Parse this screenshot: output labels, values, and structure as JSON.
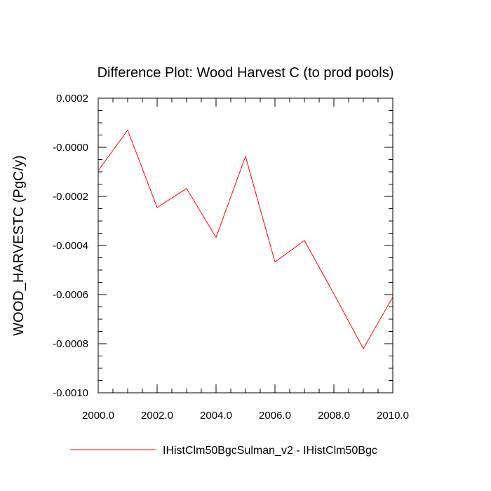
{
  "chart_data": {
    "type": "line",
    "title": "Difference Plot: Wood Harvest C (to prod pools)",
    "xlabel": "",
    "ylabel": "WOOD_HARVESTC  (PgC/y)",
    "xlim": [
      2000.0,
      2010.0
    ],
    "ylim": [
      -0.001,
      0.0002
    ],
    "x_ticks": [
      "2000.0",
      "2002.0",
      "2004.0",
      "2006.0",
      "2008.0",
      "2010.0"
    ],
    "y_ticks": [
      "0.0002",
      "-0.0000",
      "-0.0002",
      "-0.0004",
      "-0.0006",
      "-0.0008",
      "-0.0010"
    ],
    "grid": false,
    "legend_position": "bottom",
    "series": [
      {
        "name": "IHistClm50BgcSulman_v2 - IHistClm50Bgc",
        "color": "#ff0000",
        "x": [
          2000,
          2001,
          2002,
          2003,
          2004,
          2005,
          2006,
          2007,
          2008,
          2009,
          2010
        ],
        "y": [
          -9.5e-05,
          7e-05,
          -0.000245,
          -0.000168,
          -0.000367,
          -3.7e-05,
          -0.000467,
          -0.00038,
          -0.000597,
          -0.00082,
          -0.00061
        ]
      }
    ]
  }
}
